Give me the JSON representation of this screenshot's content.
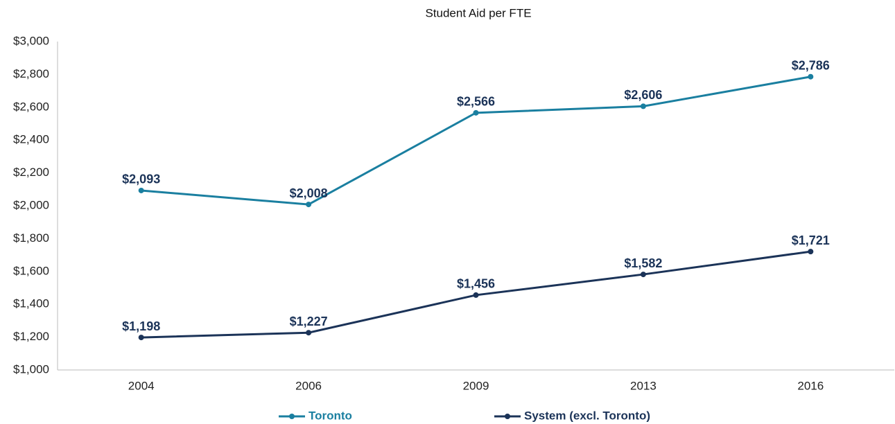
{
  "chart_data": {
    "type": "line",
    "title": "Student Aid per FTE",
    "categories": [
      "2004",
      "2006",
      "2009",
      "2013",
      "2016"
    ],
    "series": [
      {
        "name": "Toronto",
        "color": "#1a7fa0",
        "values": [
          2093,
          2008,
          2566,
          2606,
          2786
        ],
        "value_labels": [
          "$2,093",
          "$2,008",
          "$2,566",
          "$2,606",
          "$2,786"
        ]
      },
      {
        "name": "System (excl. Toronto)",
        "color": "#1b3358",
        "values": [
          1198,
          1227,
          1456,
          1582,
          1721
        ],
        "value_labels": [
          "$1,198",
          "$1,227",
          "$1,456",
          "$1,582",
          "$1,721"
        ]
      }
    ],
    "ylim": [
      1000,
      3000
    ],
    "yticks": [
      {
        "value": 1000,
        "label": "$1,000"
      },
      {
        "value": 1200,
        "label": "$1,200"
      },
      {
        "value": 1400,
        "label": "$1,400"
      },
      {
        "value": 1600,
        "label": "$1,600"
      },
      {
        "value": 1800,
        "label": "$1,800"
      },
      {
        "value": 2000,
        "label": "$2,000"
      },
      {
        "value": 2200,
        "label": "$2,200"
      },
      {
        "value": 2400,
        "label": "$2,400"
      },
      {
        "value": 2600,
        "label": "$2,600"
      },
      {
        "value": 2800,
        "label": "$2,800"
      },
      {
        "value": 3000,
        "label": "$3,000"
      }
    ],
    "grid": false,
    "legend": "bottom"
  }
}
